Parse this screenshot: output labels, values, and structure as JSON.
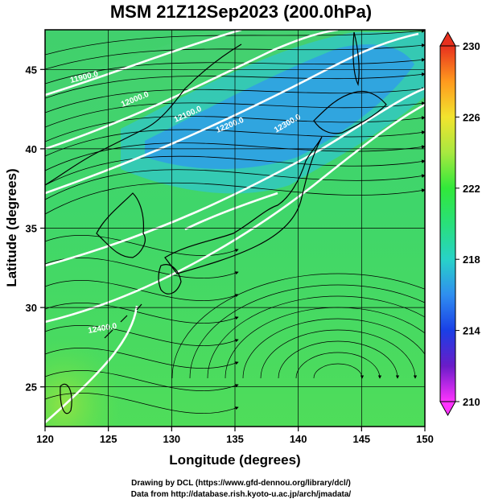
{
  "title": "MSM 21Z12Sep2023 (200.0hPa)",
  "map": {
    "xlabel": "Longitude (degrees)",
    "ylabel": "Latitude  (degrees)",
    "lon_range": [
      120,
      150
    ],
    "lat_range": [
      22.5,
      47.5
    ],
    "lon_ticks": [
      "120",
      "125",
      "130",
      "135",
      "140",
      "145",
      "150"
    ],
    "lat_ticks": [
      "25",
      "30",
      "35",
      "40",
      "45"
    ],
    "fill_variable": "temperature shading (K)",
    "contours": [
      {
        "label": "11900.0"
      },
      {
        "label": "12000.0"
      },
      {
        "label": "12100.0"
      },
      {
        "label": "12200.0"
      },
      {
        "label": "12300.0"
      },
      {
        "label": "12400.0"
      }
    ]
  },
  "colorbar": {
    "labels": [
      "230",
      "226",
      "222",
      "218",
      "214",
      "210"
    ],
    "min": 210,
    "max": 230,
    "colors": [
      "#ff33ff",
      "#6a1cc8",
      "#1a3fe6",
      "#2f8ef0",
      "#28d2c8",
      "#29e07a",
      "#31e83a",
      "#a8e840",
      "#f2e42e",
      "#ff9a1e",
      "#e8301e"
    ]
  },
  "footer": {
    "line1": "Drawing by DCL (https://www.gfd-dennou.org/library/dcl/)",
    "line2": "Data from http://database.rish.kyoto-u.ac.jp/arch/jmadata/"
  }
}
